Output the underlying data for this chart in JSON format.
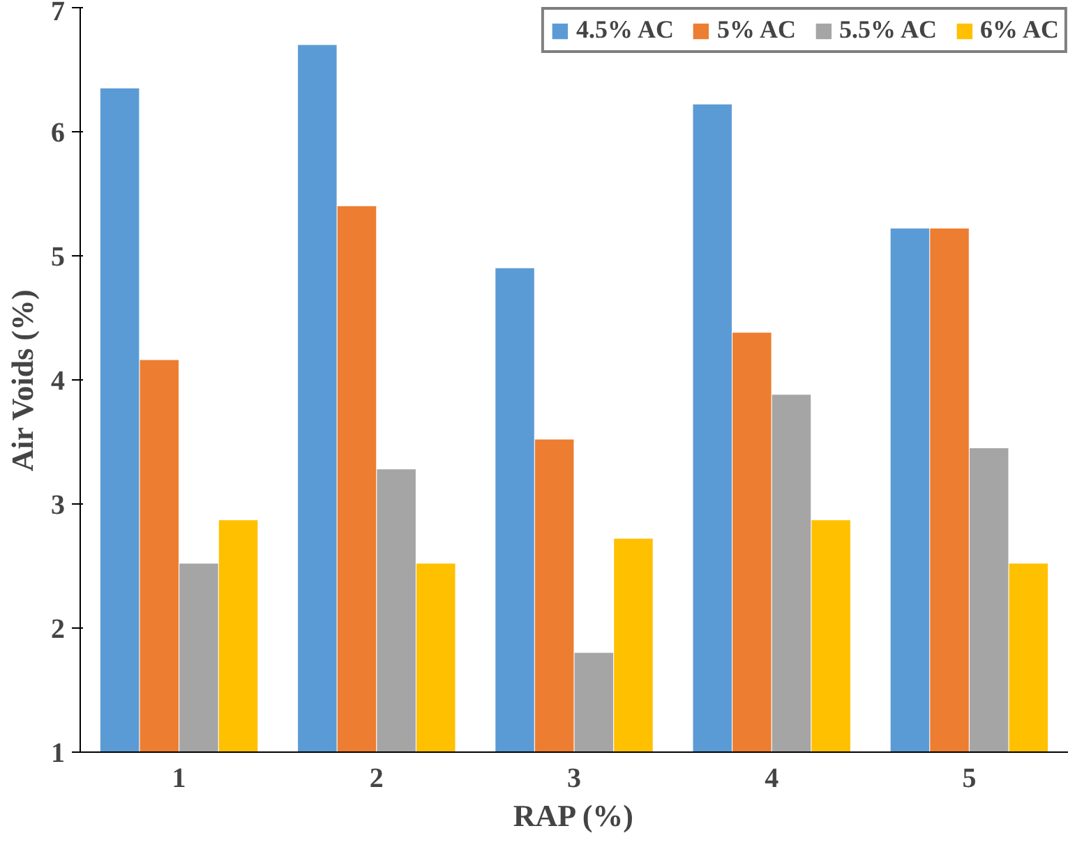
{
  "chart_data": {
    "type": "bar",
    "xlabel": "RAP (%)",
    "ylabel": "Air Voids (%)",
    "categories": [
      "1",
      "2",
      "3",
      "4",
      "5"
    ],
    "ylim": [
      1,
      7
    ],
    "yticks": [
      1,
      2,
      3,
      4,
      5,
      6,
      7
    ],
    "legend": "top",
    "grid": false,
    "series": [
      {
        "name": "4.5% AC",
        "color": "#5b9bd5",
        "values": [
          6.35,
          6.7,
          4.9,
          6.22,
          5.22
        ]
      },
      {
        "name": "5% AC",
        "color": "#ed7d31",
        "values": [
          4.16,
          5.4,
          3.52,
          4.38,
          5.22
        ]
      },
      {
        "name": "5.5% AC",
        "color": "#a5a5a5",
        "values": [
          2.52,
          3.28,
          1.8,
          3.88,
          3.45
        ]
      },
      {
        "name": "6% AC",
        "color": "#ffc000",
        "values": [
          2.87,
          2.52,
          2.72,
          2.87,
          2.52
        ]
      }
    ]
  }
}
